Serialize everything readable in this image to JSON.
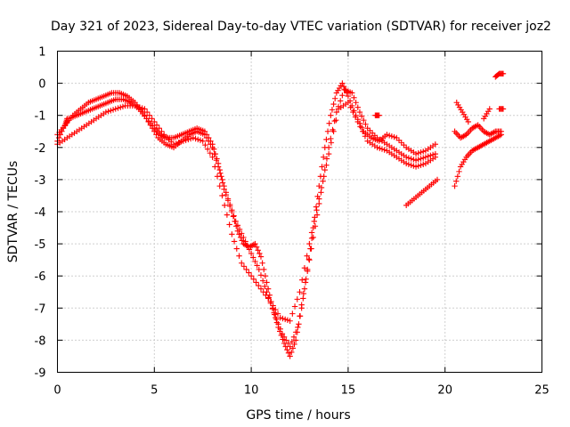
{
  "chart_data": {
    "type": "scatter",
    "title": "Day 321 of 2023, Sidereal Day-to-day VTEC variation (SDTVAR) for receiver joz2",
    "xlabel": "GPS time / hours",
    "ylabel": "SDTVAR / TECUs",
    "xlim": [
      0,
      25
    ],
    "ylim": [
      -9,
      1
    ],
    "xticks": [
      0,
      5,
      10,
      15,
      20,
      25
    ],
    "yticks": [
      1,
      0,
      -1,
      -2,
      -3,
      -4,
      -5,
      -6,
      -7,
      -8,
      -9
    ],
    "grid": true,
    "marker": "+",
    "series": [
      {
        "name": "SDTVAR",
        "color": "#ff0000",
        "segments": [
          {
            "x": [
              0.0,
              0.3,
              0.6,
              1.0,
              1.4,
              1.8,
              2.2,
              2.6,
              3.0,
              3.4,
              3.8,
              4.2,
              4.6,
              5.0,
              5.3,
              5.6,
              6.0,
              6.4,
              6.8,
              7.2,
              7.6,
              8.0,
              8.3,
              8.6,
              9.0,
              9.3,
              9.6,
              9.9,
              10.2,
              10.5,
              10.8,
              11.1,
              11.4,
              11.7,
              12.0,
              12.3,
              12.6,
              12.9,
              13.2,
              13.5,
              13.8,
              14.1,
              14.4,
              14.7,
              15.0,
              15.4,
              15.8,
              16.2,
              16.6,
              17.0,
              17.5,
              18.0,
              18.5,
              19.0,
              19.5
            ],
            "y": [
              -1.8,
              -1.4,
              -1.1,
              -1.0,
              -0.9,
              -0.8,
              -0.7,
              -0.6,
              -0.5,
              -0.5,
              -0.6,
              -0.8,
              -1.1,
              -1.4,
              -1.6,
              -1.7,
              -1.7,
              -1.6,
              -1.5,
              -1.4,
              -1.5,
              -1.9,
              -2.5,
              -3.3,
              -4.0,
              -4.6,
              -5.0,
              -5.1,
              -5.0,
              -5.4,
              -6.2,
              -7.0,
              -7.6,
              -8.1,
              -8.5,
              -8.0,
              -7.0,
              -5.8,
              -4.5,
              -3.2,
              -2.0,
              -1.0,
              -0.3,
              0.0,
              -0.4,
              -1.0,
              -1.5,
              -1.7,
              -1.8,
              -1.6,
              -1.7,
              -2.0,
              -2.2,
              -2.1,
              -1.9
            ]
          },
          {
            "x": [
              0.0,
              0.4,
              0.8,
              1.2,
              1.6,
              2.0,
              2.4,
              2.8,
              3.2,
              3.6,
              4.0,
              4.4,
              4.8,
              5.2,
              5.6,
              6.0,
              6.4,
              6.8,
              7.2,
              7.6,
              8.0,
              8.4,
              8.8,
              9.2,
              9.6,
              10.0,
              10.4,
              10.8,
              11.2,
              11.6,
              12.0,
              12.4,
              12.8,
              13.2,
              13.6,
              14.0,
              14.4,
              14.8,
              15.2,
              15.6,
              16.0,
              16.5,
              17.0,
              17.5,
              18.0,
              18.5,
              19.0,
              19.5
            ],
            "y": [
              -1.6,
              -1.3,
              -1.0,
              -0.8,
              -0.6,
              -0.5,
              -0.4,
              -0.3,
              -0.3,
              -0.4,
              -0.6,
              -0.9,
              -1.3,
              -1.7,
              -1.9,
              -2.0,
              -1.8,
              -1.6,
              -1.5,
              -1.6,
              -2.0,
              -2.8,
              -3.6,
              -4.3,
              -4.8,
              -5.3,
              -5.8,
              -6.5,
              -7.2,
              -7.8,
              -8.2,
              -7.6,
              -6.2,
              -4.8,
              -3.4,
              -2.0,
              -0.9,
              -0.2,
              -0.3,
              -0.9,
              -1.4,
              -1.7,
              -1.9,
              -2.1,
              -2.3,
              -2.4,
              -2.3,
              -2.2
            ]
          },
          {
            "x": [
              0.0,
              0.5,
              1.0,
              1.5,
              2.0,
              2.5,
              3.0,
              3.5,
              4.0,
              4.5,
              5.0,
              5.5,
              6.0,
              6.5,
              7.0,
              7.5,
              8.0,
              8.5,
              9.0,
              9.5,
              10.0,
              10.5,
              11.0,
              11.5,
              12.0,
              12.5,
              13.0,
              13.5,
              14.0,
              14.5,
              15.0,
              15.5,
              16.0,
              16.5,
              17.0,
              17.5,
              18.0,
              18.5,
              19.0,
              19.5
            ],
            "y": [
              -1.9,
              -1.7,
              -1.5,
              -1.3,
              -1.1,
              -0.9,
              -0.8,
              -0.7,
              -0.7,
              -0.8,
              -1.2,
              -1.6,
              -1.9,
              -1.8,
              -1.7,
              -1.8,
              -2.3,
              -3.5,
              -4.7,
              -5.6,
              -6.0,
              -6.4,
              -6.8,
              -7.3,
              -7.4,
              -6.5,
              -5.0,
              -3.6,
              -2.2,
              -0.8,
              -0.6,
              -1.2,
              -1.8,
              -2.0,
              -2.1,
              -2.3,
              -2.5,
              -2.6,
              -2.5,
              -2.3
            ]
          },
          {
            "x": [
              18.0,
              18.4,
              18.8,
              19.2,
              19.6
            ],
            "y": [
              -3.8,
              -3.6,
              -3.4,
              -3.2,
              -3.0
            ]
          },
          {
            "x": [
              20.5,
              20.8,
              21.1,
              21.4,
              21.7,
              22.0,
              22.3,
              22.6,
              22.9
            ],
            "y": [
              -1.5,
              -1.7,
              -1.6,
              -1.4,
              -1.3,
              -1.5,
              -1.6,
              -1.5,
              -1.5
            ]
          },
          {
            "x": [
              20.5,
              20.8,
              21.1,
              21.4,
              21.7,
              22.0,
              22.3,
              22.6,
              22.9
            ],
            "y": [
              -3.2,
              -2.6,
              -2.3,
              -2.1,
              -2.0,
              -1.9,
              -1.8,
              -1.7,
              -1.6
            ]
          },
          {
            "x": [
              20.6,
              20.9,
              21.2
            ],
            "y": [
              -0.6,
              -0.9,
              -1.2
            ]
          },
          {
            "x": [
              22.0,
              22.3
            ],
            "y": [
              -1.1,
              -0.8
            ]
          },
          {
            "x": [
              22.6,
              22.8,
              23.0
            ],
            "y": [
              0.2,
              0.3,
              0.3
            ]
          },
          {
            "x": [
              22.8,
              23.0
            ],
            "y": [
              -0.8,
              -0.8
            ]
          },
          {
            "x": [
              0.4,
              0.5
            ],
            "y": [
              -1.3,
              -1.1
            ]
          },
          {
            "x": [
              16.4,
              16.6
            ],
            "y": [
              -1.0,
              -1.0
            ]
          }
        ]
      }
    ]
  }
}
